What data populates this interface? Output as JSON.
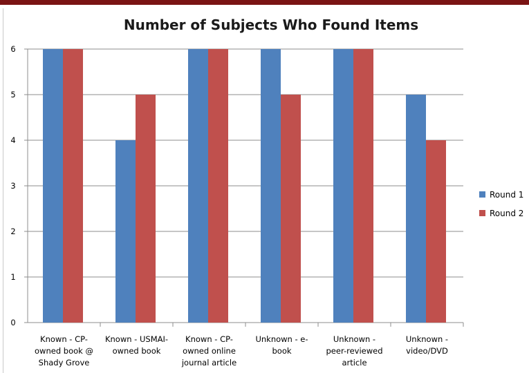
{
  "chart_data": {
    "type": "bar",
    "title": "Number of Subjects Who Found Items",
    "categories": [
      [
        "Known - CP-",
        "owned book @",
        "Shady Grove"
      ],
      [
        "Known - USMAI-",
        "owned book"
      ],
      [
        "Known - CP-",
        "owned online",
        "journal article"
      ],
      [
        "Unknown - e-",
        "book"
      ],
      [
        "Unknown -",
        "peer-reviewed",
        "article"
      ],
      [
        "Unknown -",
        "video/DVD"
      ]
    ],
    "series": [
      {
        "name": "Round 1",
        "color": "#4f81bd",
        "values": [
          6,
          4,
          6,
          6,
          6,
          5
        ]
      },
      {
        "name": "Round 2",
        "color": "#c0504d",
        "values": [
          6,
          5,
          6,
          5,
          6,
          4
        ]
      }
    ],
    "ylim": [
      0,
      6
    ],
    "yticks": [
      0,
      1,
      2,
      3,
      4,
      5,
      6
    ],
    "grid": true,
    "legend": "right"
  }
}
